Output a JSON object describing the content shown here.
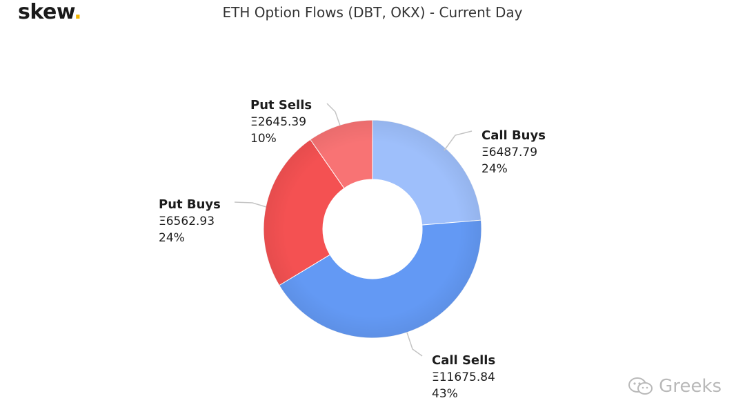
{
  "header": {
    "logo_text": "skew",
    "logo_dot": ".",
    "title": "ETH Option Flows (DBT, OKX) - Current Day"
  },
  "watermark": {
    "text": "Greeks",
    "icon": "wechat-icon"
  },
  "colors": {
    "call_buys": "#9ebffb",
    "call_sells": "#6399f4",
    "put_buys": "#f45152",
    "put_sells": "#f87374",
    "connector": "#c4c4c4"
  },
  "chart_data": {
    "type": "pie",
    "variant": "donut",
    "title": "ETH Option Flows (DBT, OKX) - Current Day",
    "currency_symbol": "Ξ",
    "slices": [
      {
        "name": "Call Buys",
        "value": 6487.79,
        "value_label": "Ξ6487.79",
        "percent_label": "24%",
        "color": "#9ebffb"
      },
      {
        "name": "Call Sells",
        "value": 11675.84,
        "value_label": "Ξ11675.84",
        "percent_label": "43%",
        "color": "#6399f4"
      },
      {
        "name": "Put Buys",
        "value": 6562.93,
        "value_label": "Ξ6562.93",
        "percent_label": "24%",
        "color": "#f45152"
      },
      {
        "name": "Put Sells",
        "value": 2645.39,
        "value_label": "Ξ2645.39",
        "percent_label": "10%",
        "color": "#f87374"
      }
    ],
    "start_angle_deg": 0,
    "direction": "clockwise"
  }
}
